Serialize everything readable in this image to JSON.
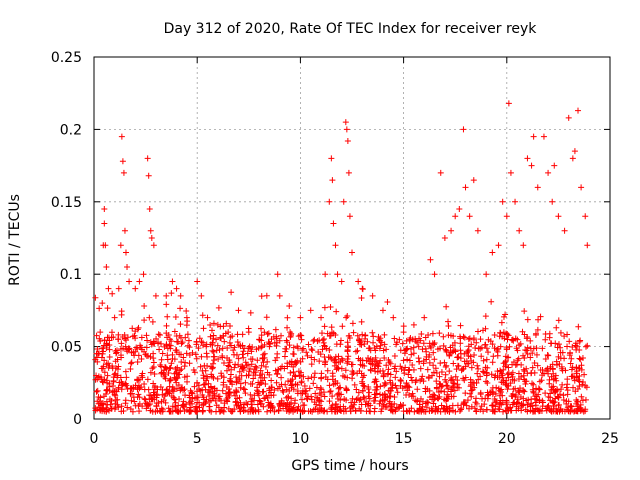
{
  "chart_data": {
    "type": "scatter",
    "title": "Day 312 of 2020, Rate Of TEC Index for receiver reyk",
    "xlabel": "GPS time / hours",
    "ylabel": "ROTI / TECUs",
    "xlim": [
      0,
      25
    ],
    "ylim": [
      0,
      0.25
    ],
    "x_ticks": [
      0,
      5,
      10,
      15,
      20,
      25
    ],
    "x_tick_labels": [
      "0",
      "5",
      "10",
      "15",
      "20",
      "25"
    ],
    "y_ticks": [
      0,
      0.05,
      0.1,
      0.15,
      0.2,
      0.25
    ],
    "y_tick_labels": [
      "0",
      "0.05",
      "0.1",
      "0.15",
      "0.2",
      "0.25"
    ],
    "grid": true,
    "marker": "plus",
    "color": "#ff0000",
    "series": [
      {
        "name": "ROTI",
        "points": [
          [
            0.1,
            0.03
          ],
          [
            0.2,
            0.045
          ],
          [
            0.3,
            0.06
          ],
          [
            0.4,
            0.08
          ],
          [
            0.45,
            0.12
          ],
          [
            0.5,
            0.145
          ],
          [
            0.5,
            0.135
          ],
          [
            0.55,
            0.12
          ],
          [
            0.6,
            0.105
          ],
          [
            0.7,
            0.09
          ],
          [
            1.0,
            0.07
          ],
          [
            1.2,
            0.09
          ],
          [
            1.3,
            0.12
          ],
          [
            1.35,
            0.195
          ],
          [
            1.4,
            0.178
          ],
          [
            1.45,
            0.17
          ],
          [
            1.5,
            0.13
          ],
          [
            1.55,
            0.115
          ],
          [
            1.6,
            0.105
          ],
          [
            1.7,
            0.095
          ],
          [
            2.0,
            0.09
          ],
          [
            2.2,
            0.095
          ],
          [
            2.4,
            0.1
          ],
          [
            2.6,
            0.18
          ],
          [
            2.65,
            0.168
          ],
          [
            2.7,
            0.145
          ],
          [
            2.75,
            0.13
          ],
          [
            2.8,
            0.125
          ],
          [
            2.9,
            0.12
          ],
          [
            3.0,
            0.085
          ],
          [
            3.5,
            0.085
          ],
          [
            3.8,
            0.095
          ],
          [
            4.0,
            0.09
          ],
          [
            4.2,
            0.085
          ],
          [
            4.5,
            0.07
          ],
          [
            5.0,
            0.095
          ],
          [
            5.2,
            0.085
          ],
          [
            5.5,
            0.07
          ],
          [
            6.0,
            0.065
          ],
          [
            6.5,
            0.06
          ],
          [
            7.0,
            0.075
          ],
          [
            7.5,
            0.06
          ],
          [
            8.0,
            0.055
          ],
          [
            8.5,
            0.05
          ],
          [
            8.9,
            0.1
          ],
          [
            9.0,
            0.085
          ],
          [
            9.5,
            0.06
          ],
          [
            10.0,
            0.07
          ],
          [
            10.5,
            0.075
          ],
          [
            11.0,
            0.07
          ],
          [
            11.2,
            0.1
          ],
          [
            11.4,
            0.15
          ],
          [
            11.5,
            0.18
          ],
          [
            11.55,
            0.165
          ],
          [
            11.6,
            0.135
          ],
          [
            11.7,
            0.12
          ],
          [
            11.8,
            0.1
          ],
          [
            12.0,
            0.095
          ],
          [
            12.1,
            0.15
          ],
          [
            12.2,
            0.205
          ],
          [
            12.25,
            0.2
          ],
          [
            12.3,
            0.192
          ],
          [
            12.35,
            0.17
          ],
          [
            12.4,
            0.14
          ],
          [
            12.5,
            0.115
          ],
          [
            12.8,
            0.095
          ],
          [
            13.0,
            0.09
          ],
          [
            13.5,
            0.085
          ],
          [
            14.0,
            0.075
          ],
          [
            14.5,
            0.07
          ],
          [
            15.0,
            0.06
          ],
          [
            15.5,
            0.065
          ],
          [
            16.0,
            0.07
          ],
          [
            16.3,
            0.11
          ],
          [
            16.5,
            0.1
          ],
          [
            16.8,
            0.17
          ],
          [
            17.0,
            0.125
          ],
          [
            17.3,
            0.13
          ],
          [
            17.5,
            0.14
          ],
          [
            17.7,
            0.145
          ],
          [
            17.9,
            0.2
          ],
          [
            18.0,
            0.16
          ],
          [
            18.2,
            0.14
          ],
          [
            18.4,
            0.165
          ],
          [
            18.6,
            0.13
          ],
          [
            19.0,
            0.1
          ],
          [
            19.3,
            0.115
          ],
          [
            19.6,
            0.12
          ],
          [
            19.8,
            0.15
          ],
          [
            20.0,
            0.14
          ],
          [
            20.1,
            0.218
          ],
          [
            20.2,
            0.17
          ],
          [
            20.4,
            0.15
          ],
          [
            20.6,
            0.13
          ],
          [
            20.8,
            0.12
          ],
          [
            21.0,
            0.18
          ],
          [
            21.2,
            0.175
          ],
          [
            21.3,
            0.195
          ],
          [
            21.5,
            0.16
          ],
          [
            21.8,
            0.195
          ],
          [
            22.0,
            0.17
          ],
          [
            22.2,
            0.15
          ],
          [
            22.3,
            0.175
          ],
          [
            22.5,
            0.14
          ],
          [
            22.8,
            0.13
          ],
          [
            23.0,
            0.208
          ],
          [
            23.2,
            0.18
          ],
          [
            23.3,
            0.185
          ],
          [
            23.45,
            0.213
          ],
          [
            23.6,
            0.16
          ],
          [
            23.8,
            0.14
          ],
          [
            23.9,
            0.12
          ]
        ],
        "baseline_band": [
          0.005,
          0.06
        ]
      }
    ]
  }
}
